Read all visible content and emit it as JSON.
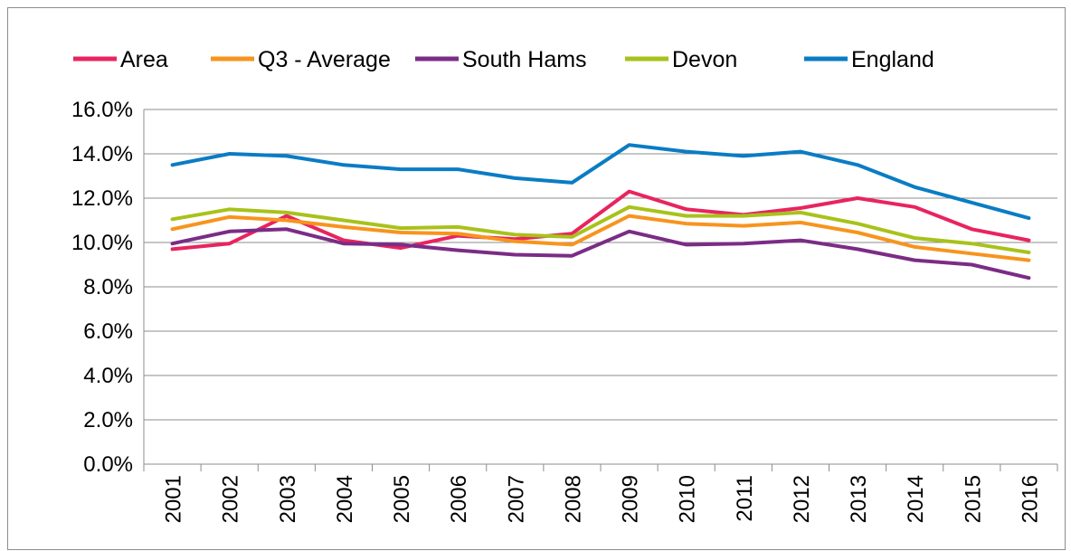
{
  "chart_data": {
    "type": "line",
    "title": "",
    "xlabel": "",
    "ylabel": "",
    "categories": [
      "2001",
      "2002",
      "2003",
      "2004",
      "2005",
      "2006",
      "2007",
      "2008",
      "2009",
      "2010",
      "2011",
      "2012",
      "2013",
      "2014",
      "2015",
      "2016"
    ],
    "ylim": [
      0,
      16
    ],
    "y_ticks": [
      0,
      2,
      4,
      6,
      8,
      10,
      12,
      14,
      16
    ],
    "y_tick_labels": [
      "0.0%",
      "2.0%",
      "4.0%",
      "6.0%",
      "8.0%",
      "10.0%",
      "12.0%",
      "14.0%",
      "16.0%"
    ],
    "y_unit": "percent",
    "grid": true,
    "legend_position": "top",
    "series": [
      {
        "name": "Area",
        "color": "#e8245f",
        "values": [
          9.7,
          9.95,
          11.2,
          10.1,
          9.75,
          10.3,
          10.15,
          10.4,
          12.3,
          11.5,
          11.25,
          11.55,
          12.0,
          11.6,
          10.6,
          10.1
        ]
      },
      {
        "name": "Q3 - Average",
        "color": "#f7941e",
        "values": [
          10.6,
          11.15,
          11.0,
          10.7,
          10.45,
          10.4,
          10.05,
          9.9,
          11.2,
          10.85,
          10.75,
          10.9,
          10.45,
          9.8,
          9.5,
          9.2
        ]
      },
      {
        "name": "South Hams",
        "color": "#7b2c86",
        "values": [
          9.95,
          10.5,
          10.6,
          9.95,
          9.9,
          9.65,
          9.45,
          9.4,
          10.5,
          9.9,
          9.95,
          10.1,
          9.7,
          9.2,
          9.0,
          8.4
        ]
      },
      {
        "name": "Devon",
        "color": "#a8c21a",
        "values": [
          11.05,
          11.5,
          11.35,
          11.0,
          10.65,
          10.7,
          10.35,
          10.25,
          11.6,
          11.2,
          11.2,
          11.35,
          10.85,
          10.2,
          9.95,
          9.55
        ]
      },
      {
        "name": "England",
        "color": "#0a7cc4",
        "values": [
          13.5,
          14.0,
          13.9,
          13.5,
          13.3,
          13.3,
          12.9,
          12.7,
          14.4,
          14.1,
          13.9,
          14.1,
          13.5,
          12.5,
          11.8,
          11.1
        ]
      }
    ]
  }
}
